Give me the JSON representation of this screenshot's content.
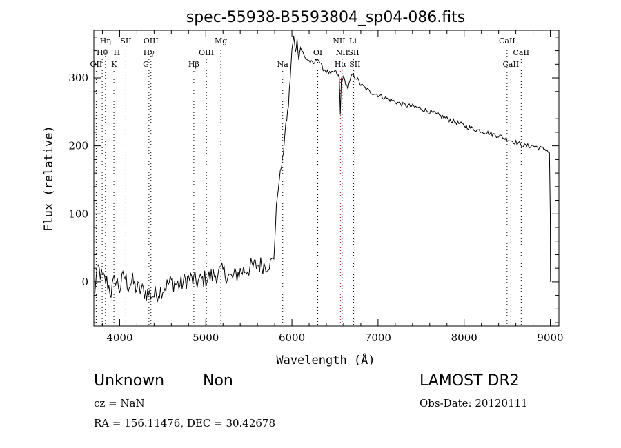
{
  "chart_data": {
    "type": "line",
    "title": "spec-55938-B5593804_sp04-086.fits",
    "xlabel": "Wavelength (Å)",
    "ylabel": "Flux (relative)",
    "xlim": [
      3700,
      9100
    ],
    "ylim": [
      -65,
      370
    ],
    "xticks": [
      4000,
      5000,
      6000,
      7000,
      8000,
      9000
    ],
    "yticks": [
      0,
      100,
      200,
      300
    ],
    "grid": false,
    "series": [
      {
        "color": "#000000",
        "x": [
          3700,
          3750,
          3800,
          3850,
          3900,
          3950,
          4000,
          4050,
          4100,
          4150,
          4200,
          4300,
          4400,
          4500,
          4600,
          4700,
          4800,
          4900,
          5000,
          5100,
          5200,
          5300,
          5400,
          5500,
          5600,
          5700,
          5750,
          5790,
          5800,
          5820,
          5850,
          5880,
          5900,
          5920,
          5940,
          5960,
          5980,
          6000,
          6020,
          6040,
          6060,
          6080,
          6100,
          6150,
          6200,
          6250,
          6300,
          6350,
          6400,
          6450,
          6500,
          6550,
          6562,
          6575,
          6600,
          6650,
          6700,
          6750,
          6800,
          6900,
          7000,
          7100,
          7200,
          7300,
          7400,
          7500,
          7600,
          7700,
          7800,
          7900,
          8000,
          8100,
          8200,
          8300,
          8400,
          8500,
          8600,
          8700,
          8800,
          8900,
          8950,
          8990,
          9000,
          9002
        ],
        "values": [
          -20,
          20,
          5,
          0,
          -15,
          5,
          -10,
          10,
          -5,
          0,
          -10,
          -15,
          -20,
          -10,
          0,
          -5,
          5,
          0,
          5,
          10,
          15,
          5,
          15,
          20,
          25,
          25,
          30,
          35,
          60,
          110,
          150,
          170,
          190,
          220,
          240,
          260,
          300,
          340,
          360,
          340,
          355,
          330,
          345,
          330,
          325,
          320,
          330,
          315,
          310,
          305,
          310,
          300,
          245,
          300,
          300,
          285,
          305,
          300,
          290,
          280,
          275,
          270,
          265,
          260,
          258,
          255,
          250,
          245,
          240,
          235,
          230,
          225,
          222,
          218,
          215,
          210,
          205,
          200,
          200,
          196,
          195,
          190,
          100,
          0
        ]
      }
    ],
    "line_markers": [
      {
        "label": "Hη",
        "x": 3835,
        "row": 1,
        "color": "#000000"
      },
      {
        "label": "Hθ",
        "x": 3797,
        "row": 2,
        "color": "#000000"
      },
      {
        "label": "OII",
        "x": 3727,
        "row": 3,
        "color": "#000000"
      },
      {
        "label": "SII",
        "x": 4072,
        "row": 1,
        "color": "#000000"
      },
      {
        "label": "H",
        "x": 3968,
        "row": 2,
        "color": "#000000"
      },
      {
        "label": "K",
        "x": 3933,
        "row": 3,
        "color": "#000000"
      },
      {
        "label": "OIII",
        "x": 4363,
        "row": 1,
        "color": "#000000"
      },
      {
        "label": "Hγ",
        "x": 4340,
        "row": 2,
        "color": "#000000"
      },
      {
        "label": "G",
        "x": 4305,
        "row": 3,
        "color": "#000000"
      },
      {
        "label": "Mg",
        "x": 5175,
        "row": 1,
        "color": "#000000"
      },
      {
        "label": "OIII",
        "x": 5007,
        "row": 2,
        "color": "#000000"
      },
      {
        "label": "Hβ",
        "x": 4861,
        "row": 3,
        "color": "#000000"
      },
      {
        "label": "Na",
        "x": 5893,
        "row": 3,
        "color": "#000000"
      },
      {
        "label": "OI",
        "x": 6300,
        "row": 2,
        "color": "#000000"
      },
      {
        "label": "NII",
        "x": 6548,
        "row": 1,
        "color": "#000000"
      },
      {
        "label": "NII",
        "x": 6583,
        "row": 2,
        "color": "#000000"
      },
      {
        "label": "Hα",
        "x": 6563,
        "row": 3,
        "color": "#cc0000"
      },
      {
        "label": "Li",
        "x": 6708,
        "row": 1,
        "color": "#000000"
      },
      {
        "label": "SII",
        "x": 6716,
        "row": 2,
        "color": "#000000"
      },
      {
        "label": "SII",
        "x": 6731,
        "row": 3,
        "color": "#000000"
      },
      {
        "label": "CaII",
        "x": 8498,
        "row": 1,
        "color": "#000000"
      },
      {
        "label": "CaII",
        "x": 8542,
        "row": 3,
        "color": "#000000"
      },
      {
        "label": "CaII",
        "x": 8662,
        "row": 2,
        "color": "#000000"
      }
    ]
  },
  "info": {
    "classification": "Unknown",
    "subclass": "Non",
    "survey": "LAMOST DR2",
    "redshift": "cz = NaN",
    "obs_date": "Obs-Date: 20120111",
    "coordinates": "RA = 156.11476, DEC =  30.42678"
  }
}
